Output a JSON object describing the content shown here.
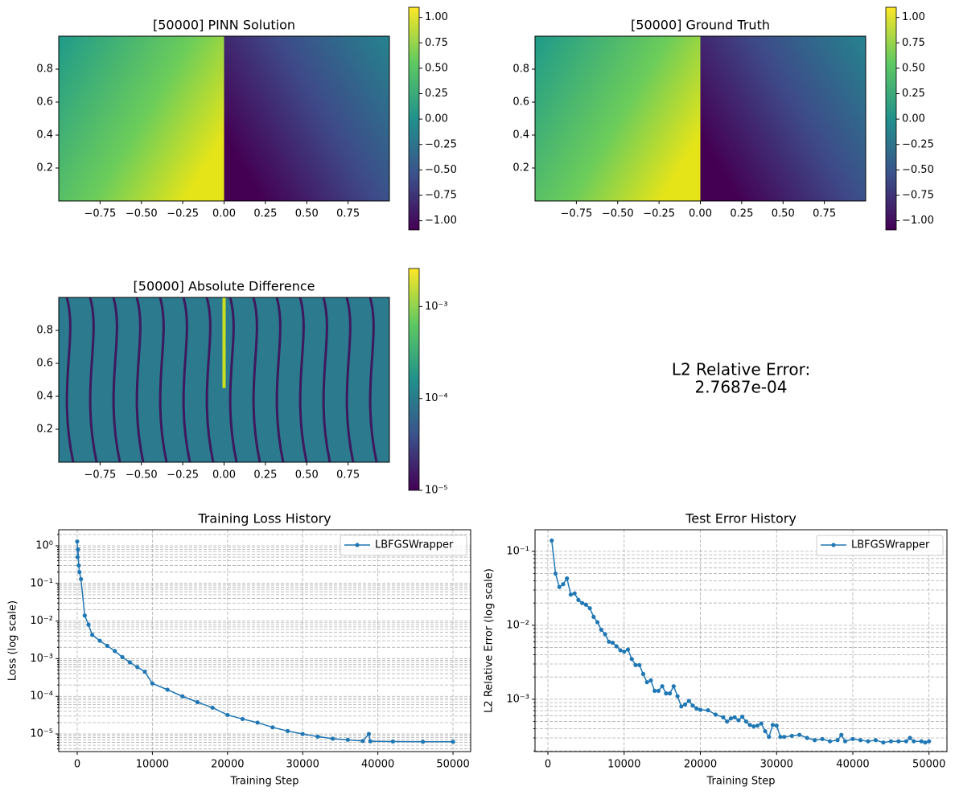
{
  "chart_data": [
    {
      "type": "heatmap",
      "title": "[50000] PINN Solution",
      "xlim": [
        -1,
        1
      ],
      "ylim": [
        0,
        1
      ],
      "xticks": [
        {
          "value": -0.75,
          "label": "−0.75"
        },
        {
          "value": -0.5,
          "label": "−0.50"
        },
        {
          "value": -0.25,
          "label": "−0.25"
        },
        {
          "value": 0,
          "label": "0.00"
        },
        {
          "value": 0.25,
          "label": "0.25"
        },
        {
          "value": 0.5,
          "label": "0.50"
        },
        {
          "value": 0.75,
          "label": "0.75"
        }
      ],
      "yticks": [
        0.2,
        0.4,
        0.6,
        0.8
      ],
      "colorbar": {
        "lim": [
          -1.09,
          1.1
        ],
        "ticks": [
          {
            "value": -1,
            "label": "−1.00"
          },
          {
            "value": -0.75,
            "label": "−0.75"
          },
          {
            "value": -0.5,
            "label": "−0.50"
          },
          {
            "value": -0.25,
            "label": "−0.25"
          },
          {
            "value": 0,
            "label": "0.00"
          },
          {
            "value": 0.25,
            "label": "0.25"
          },
          {
            "value": 0.5,
            "label": "0.50"
          },
          {
            "value": 0.75,
            "label": "0.75"
          },
          {
            "value": 1,
            "label": "1.00"
          }
        ]
      }
    },
    {
      "type": "heatmap",
      "title": "[50000] Ground Truth",
      "xlim": [
        -1,
        1
      ],
      "ylim": [
        0,
        1
      ],
      "xticks": [
        {
          "value": -0.75,
          "label": "−0.75"
        },
        {
          "value": -0.5,
          "label": "−0.50"
        },
        {
          "value": -0.25,
          "label": "−0.25"
        },
        {
          "value": 0,
          "label": "0.00"
        },
        {
          "value": 0.25,
          "label": "0.25"
        },
        {
          "value": 0.5,
          "label": "0.50"
        },
        {
          "value": 0.75,
          "label": "0.75"
        }
      ],
      "yticks": [
        0.2,
        0.4,
        0.6,
        0.8
      ],
      "colorbar": {
        "lim": [
          -1.09,
          1.1
        ],
        "ticks": [
          {
            "value": -1,
            "label": "−1.00"
          },
          {
            "value": -0.75,
            "label": "−0.75"
          },
          {
            "value": -0.5,
            "label": "−0.50"
          },
          {
            "value": -0.25,
            "label": "−0.25"
          },
          {
            "value": 0,
            "label": "0.00"
          },
          {
            "value": 0.25,
            "label": "0.25"
          },
          {
            "value": 0.5,
            "label": "0.50"
          },
          {
            "value": 0.75,
            "label": "0.75"
          },
          {
            "value": 1,
            "label": "1.00"
          }
        ]
      }
    },
    {
      "type": "heatmap",
      "title": "[50000] Absolute Difference",
      "xlim": [
        -1,
        1
      ],
      "ylim": [
        0,
        1
      ],
      "xticks": [
        {
          "value": -0.75,
          "label": "−0.75"
        },
        {
          "value": -0.5,
          "label": "−0.50"
        },
        {
          "value": -0.25,
          "label": "−0.25"
        },
        {
          "value": 0,
          "label": "0.00"
        },
        {
          "value": 0.25,
          "label": "0.25"
        },
        {
          "value": 0.5,
          "label": "0.50"
        },
        {
          "value": 0.75,
          "label": "0.75"
        }
      ],
      "yticks": [
        0.2,
        0.4,
        0.6,
        0.8
      ],
      "colorbar": {
        "log": true,
        "lim": [
          1e-05,
          0.0026
        ],
        "ticks": [
          {
            "value": 1e-05,
            "label": "10⁻⁵"
          },
          {
            "value": 0.0001,
            "label": "10⁻⁴"
          },
          {
            "value": 0.001,
            "label": "10⁻³"
          }
        ]
      }
    },
    {
      "type": "text",
      "lines": [
        "L2 Relative Error:",
        "2.7687e-04"
      ]
    },
    {
      "type": "line",
      "title": "Training Loss History",
      "xlabel": "Training Step",
      "ylabel": "Loss (log scale)",
      "log_y": true,
      "grid": true,
      "legend": "upper right",
      "xlim": [
        -2460,
        52350
      ],
      "ylim": [
        3.4e-06,
        2.67
      ],
      "xticks": [
        0,
        10000,
        20000,
        30000,
        40000,
        50000
      ],
      "yticks": [
        {
          "value": 1e-05,
          "label": "10⁻⁵"
        },
        {
          "value": 0.0001,
          "label": "10⁻⁴"
        },
        {
          "value": 0.001,
          "label": "10⁻³"
        },
        {
          "value": 0.01,
          "label": "10⁻²"
        },
        {
          "value": 0.1,
          "label": "10⁻¹"
        },
        {
          "value": 1,
          "label": "10⁰"
        }
      ],
      "yminorticks": [
        4e-06,
        5e-06,
        6e-06,
        7e-06,
        8e-06,
        9e-06,
        2e-05,
        3e-05,
        4e-05,
        5e-05,
        6e-05,
        7e-05,
        8e-05,
        9e-05,
        0.0002,
        0.0003,
        0.0004,
        0.0005,
        0.0006,
        0.0007,
        0.0008,
        0.0009,
        0.002,
        0.003,
        0.004,
        0.005,
        0.006,
        0.007,
        0.008,
        0.009,
        0.02,
        0.03,
        0.04,
        0.05,
        0.06,
        0.07,
        0.08,
        0.09,
        0.2,
        0.3,
        0.4,
        0.5,
        0.6,
        0.7,
        0.8,
        0.9,
        2
      ],
      "x": [
        0,
        50,
        100,
        200,
        300,
        500,
        1000,
        1500,
        2000,
        3000,
        4000,
        5000,
        6000,
        7000,
        8000,
        9000,
        10000,
        12000,
        14000,
        16000,
        18000,
        20000,
        22000,
        24000,
        26000,
        28000,
        30000,
        32000,
        34000,
        36000,
        38000,
        38800,
        39000,
        42000,
        46000,
        50000
      ],
      "series": [
        {
          "name": "LBFGSWrapper",
          "color": "#1f77b4",
          "values": [
            1.3,
            0.5,
            0.8,
            0.3,
            0.2,
            0.13,
            0.014,
            0.008,
            0.0043,
            0.003,
            0.0022,
            0.0016,
            0.0011,
            0.0008,
            0.0006,
            0.00045,
            0.00022,
            0.00015,
            0.0001,
            7e-05,
            5e-05,
            3.2e-05,
            2.5e-05,
            2e-05,
            1.5e-05,
            1.2e-05,
            1e-05,
            8.5e-06,
            7.5e-06,
            7e-06,
            6.5e-06,
            1e-05,
            6.4e-06,
            6.3e-06,
            6.2e-06,
            6.2e-06
          ]
        }
      ]
    },
    {
      "type": "line",
      "title": "Test Error History",
      "xlabel": "Training Step",
      "ylabel": "L2 Relative Error (log scale)",
      "log_y": true,
      "grid": true,
      "legend": "upper right",
      "xlim": [
        -1690,
        52350
      ],
      "ylim": [
        0.000196,
        0.196
      ],
      "xticks": [
        0,
        10000,
        20000,
        30000,
        40000,
        50000
      ],
      "yticks": [
        {
          "value": 0.001,
          "label": "10⁻³"
        },
        {
          "value": 0.01,
          "label": "10⁻²"
        },
        {
          "value": 0.1,
          "label": "10⁻¹"
        }
      ],
      "yminorticks": [
        0.0002,
        0.0003,
        0.0004,
        0.0005,
        0.0006,
        0.0007,
        0.0008,
        0.0009,
        0.002,
        0.003,
        0.004,
        0.005,
        0.006,
        0.007,
        0.008,
        0.009,
        0.02,
        0.03,
        0.04,
        0.05,
        0.06,
        0.07,
        0.08,
        0.09
      ],
      "x": [
        500,
        1000,
        1500,
        2000,
        2500,
        3000,
        3500,
        4000,
        4500,
        5000,
        5500,
        6000,
        6500,
        7000,
        7500,
        8000,
        8500,
        9000,
        9500,
        10000,
        10500,
        11000,
        11500,
        12000,
        12500,
        13000,
        13500,
        14000,
        14500,
        15000,
        15500,
        16000,
        16500,
        17000,
        17500,
        18000,
        18500,
        19000,
        19500,
        20000,
        21000,
        22000,
        23000,
        23500,
        24000,
        24500,
        25000,
        25500,
        26000,
        26500,
        27000,
        27500,
        28000,
        28500,
        29000,
        29500,
        30000,
        30500,
        31000,
        32000,
        33000,
        34000,
        35000,
        36000,
        37000,
        38000,
        38500,
        39000,
        40000,
        41000,
        42000,
        43000,
        44000,
        45000,
        46000,
        47000,
        47500,
        48000,
        49000,
        49500,
        50000
      ],
      "series": [
        {
          "name": "LBFGSWrapper",
          "color": "#1f77b4",
          "values": [
            0.14,
            0.05,
            0.033,
            0.036,
            0.043,
            0.026,
            0.027,
            0.022,
            0.02,
            0.019,
            0.017,
            0.013,
            0.011,
            0.0087,
            0.0076,
            0.006,
            0.0058,
            0.0052,
            0.0046,
            0.0044,
            0.0047,
            0.0035,
            0.0029,
            0.0029,
            0.0022,
            0.0017,
            0.0018,
            0.0013,
            0.0013,
            0.0015,
            0.0012,
            0.0012,
            0.0015,
            0.0011,
            0.0008,
            0.00085,
            0.00095,
            0.00082,
            0.00075,
            0.00072,
            0.00071,
            0.00062,
            0.00057,
            0.0005,
            0.00055,
            0.00057,
            0.00052,
            0.00058,
            0.0005,
            0.00045,
            0.00043,
            0.00044,
            0.00047,
            0.00037,
            0.00031,
            0.00045,
            0.00044,
            0.00031,
            0.00031,
            0.00032,
            0.00033,
            0.0003,
            0.00028,
            0.00029,
            0.00027,
            0.00028,
            0.00033,
            0.00027,
            0.00029,
            0.00028,
            0.00027,
            0.00028,
            0.00026,
            0.00027,
            0.00027,
            0.00027,
            0.0003,
            0.00027,
            0.00027,
            0.00026,
            0.00027
          ]
        }
      ]
    }
  ]
}
